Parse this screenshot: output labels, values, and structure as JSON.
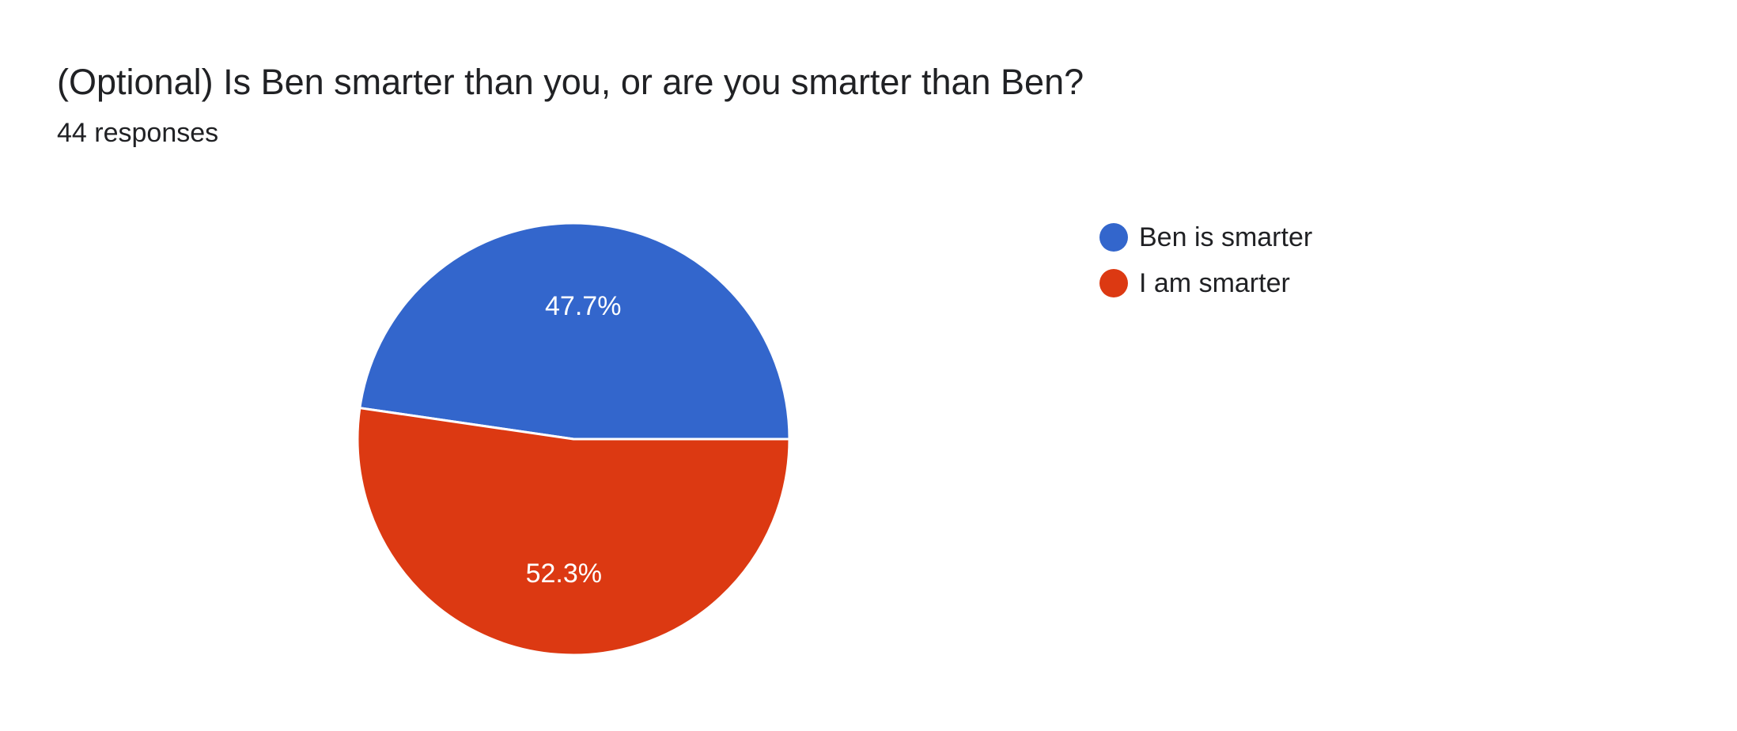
{
  "header": {
    "title": "(Optional) Is Ben smarter than you, or are you smarter than Ben?",
    "subtitle": "44 responses"
  },
  "colors": {
    "ben_is_smarter": "#3366cc",
    "i_am_smarter": "#dc3912",
    "slice_border": "#ffffff",
    "label_text": "#ffffff"
  },
  "chart_data": {
    "type": "pie",
    "title": "(Optional) Is Ben smarter than you, or are you smarter than Ben?",
    "subtitle": "44 responses",
    "legend_position": "right",
    "start_angle": "3 o'clock, counter-clockwise",
    "slices": [
      {
        "label": "Ben is smarter",
        "value": 47.7,
        "display": "47.7%",
        "color": "#3366cc"
      },
      {
        "label": "I am smarter",
        "value": 52.3,
        "display": "52.3%",
        "color": "#dc3912"
      }
    ]
  }
}
